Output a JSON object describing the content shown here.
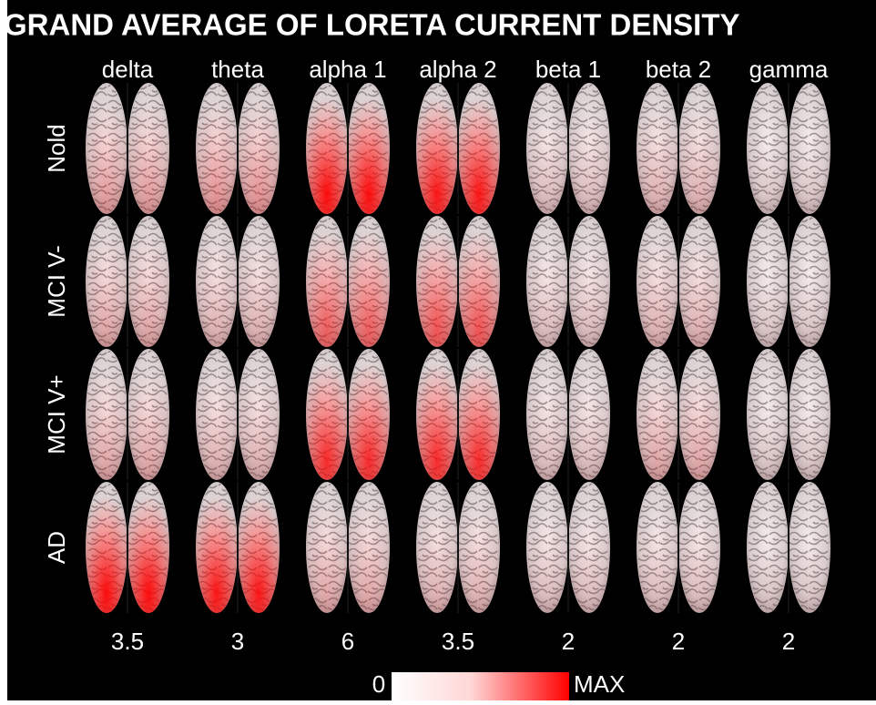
{
  "title": "GRAND AVERAGE OF LORETA CURRENT DENSITY",
  "columns": [
    "delta",
    "theta",
    "alpha 1",
    "alpha 2",
    "beta 1",
    "beta 2",
    "gamma"
  ],
  "rows": [
    "Nold",
    "MCI V-",
    "MCI V+",
    "AD"
  ],
  "scale_max": [
    3.5,
    3,
    6,
    3.5,
    2,
    2,
    2
  ],
  "colorbar": {
    "min_label": "0",
    "max_label": "MAX"
  }
}
